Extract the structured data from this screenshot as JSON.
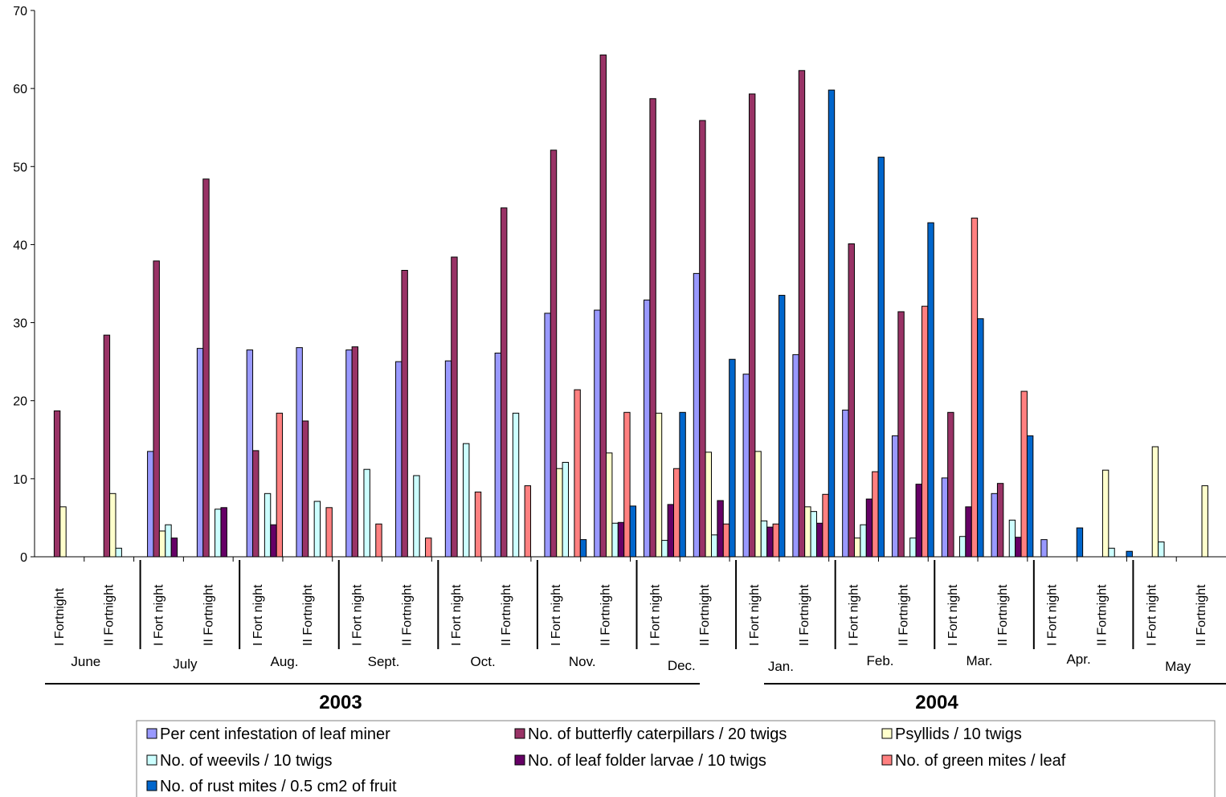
{
  "chart_data": {
    "type": "bar",
    "title": "",
    "xlabel": "",
    "ylabel": "",
    "ylim": [
      0,
      70
    ],
    "yticks": [
      0,
      10,
      20,
      30,
      40,
      50,
      60,
      70
    ],
    "grid": false,
    "legend_position": "bottom",
    "categories": [
      "I Fortnight",
      "II Fortnight",
      "I Fort night",
      "II Fortnight",
      "I Fort night",
      "II Fortnight",
      "I Fort night",
      "II Fortnight",
      "I Fort night",
      "II Fortnight",
      "I Fort night",
      "II Fortnight",
      "I Fort night",
      "II Fortnight",
      "I Fort night",
      "II Fortnight",
      "I Fort night",
      "II Fortnight",
      "I Fort night",
      "II Fortnight",
      "I Fort night",
      "II Fortnight",
      "I Fort night",
      "II Fortnight"
    ],
    "months": [
      "June",
      "July",
      "Aug.",
      "Sept.",
      "Oct.",
      "Nov.",
      "Dec.",
      "Jan.",
      "Feb.",
      "Mar.",
      "Apr.",
      "May"
    ],
    "years": [
      "2003",
      "2004"
    ],
    "series": [
      {
        "name": "Per cent infestation of leaf miner",
        "color": "#9999ff",
        "values": [
          0,
          0,
          13.5,
          26.7,
          26.5,
          26.8,
          26.5,
          25.0,
          25.1,
          26.1,
          31.2,
          31.6,
          32.9,
          36.3,
          23.4,
          25.9,
          18.8,
          15.5,
          10.1,
          8.1,
          2.2,
          0,
          0,
          0
        ]
      },
      {
        "name": "No. of  butterfly caterpillars / 20 twigs",
        "color": "#993366",
        "values": [
          18.7,
          28.4,
          37.9,
          48.4,
          13.6,
          17.4,
          26.9,
          36.7,
          38.4,
          44.7,
          52.1,
          64.3,
          58.7,
          55.9,
          59.3,
          62.3,
          40.1,
          31.4,
          18.5,
          9.4,
          0,
          0,
          0,
          0
        ]
      },
      {
        "name": "Psyllids / 10 twigs",
        "color": "#ffffcc",
        "values": [
          6.4,
          8.1,
          3.3,
          0,
          0,
          0,
          0,
          0,
          0,
          0,
          11.3,
          13.3,
          18.4,
          13.4,
          13.5,
          6.4,
          2.4,
          0,
          0,
          0,
          0,
          11.1,
          14.1,
          9.1
        ]
      },
      {
        "name": "No. of weevils / 10 twigs",
        "color": "#ccffff",
        "values": [
          0,
          1.1,
          4.1,
          6.1,
          8.1,
          7.1,
          11.2,
          10.4,
          14.5,
          18.4,
          12.1,
          4.3,
          2.1,
          2.8,
          4.6,
          5.8,
          4.1,
          2.4,
          2.6,
          4.7,
          0,
          1.1,
          1.9,
          0
        ]
      },
      {
        "name": "No. of leaf folder larvae / 10 twigs",
        "color": "#660066",
        "values": [
          0,
          0,
          2.4,
          6.3,
          4.1,
          0,
          0,
          0,
          0,
          0,
          0,
          4.4,
          6.7,
          7.2,
          3.8,
          4.3,
          7.4,
          9.3,
          6.4,
          2.5,
          0,
          0,
          0,
          0
        ]
      },
      {
        "name": "No. of green  mites / leaf",
        "color": "#ff8080",
        "values": [
          0,
          0,
          0,
          0,
          18.4,
          6.3,
          4.2,
          2.4,
          8.3,
          9.1,
          21.4,
          18.5,
          11.3,
          4.2,
          4.2,
          8.0,
          10.9,
          32.1,
          43.4,
          21.2,
          0,
          0,
          0,
          0
        ]
      },
      {
        "name": "No. of rust mites / 0.5 cm2 of  fruit",
        "color": "#0066cc",
        "values": [
          0,
          0,
          0,
          0,
          0,
          0,
          0,
          0,
          0,
          0,
          2.2,
          6.5,
          18.5,
          25.3,
          33.5,
          59.8,
          51.2,
          42.8,
          30.5,
          15.5,
          3.7,
          0.7,
          0,
          0
        ]
      }
    ]
  }
}
